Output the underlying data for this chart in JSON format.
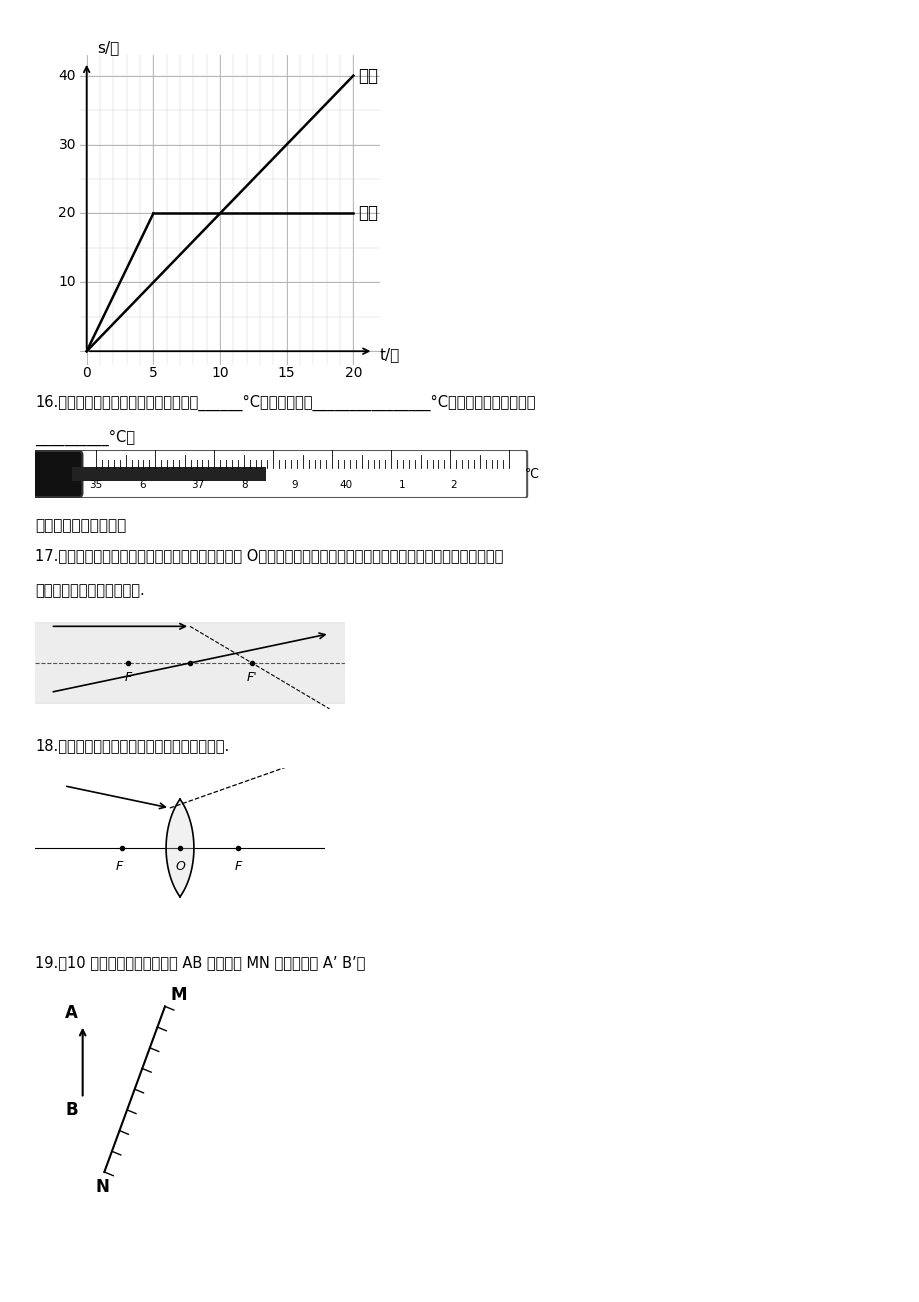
{
  "bg_color": "#ffffff",
  "page_width": 9.2,
  "page_height": 13.02,
  "graph_ylabel": "s/米",
  "graph_xlabel": "t/秒",
  "graph_xlim": [
    0,
    20
  ],
  "graph_ylim": [
    0,
    40
  ],
  "graph_xticks": [
    0,
    5,
    10,
    15,
    20
  ],
  "graph_yticks": [
    10,
    20,
    30,
    40
  ],
  "jia_label": "甲车",
  "yi_label": "乙车",
  "q16_line1": "16.　观察图中的体温计，它的分度局是______°C，测量范围是________________°C，图中体温计的示数是",
  "q16_line2": "__________°C。",
  "therm_numbers": [
    "35",
    "6",
    "37",
    "8",
    "9",
    "40",
    "1",
    "2"
  ],
  "sec4_title": "四、作图、实验探究题",
  "q17_line1": "17.　如图所示，已知一条入射光线过凸透镜的光心 O，一条经过凸透镜折射后的光线与主光轴平行，请分别画出它们",
  "q17_line2": "对应的出射光线和入射光线.",
  "q18_line1": "18.　如图所示，请画出通过透镜后的折射光线.",
  "q19_line1": "19.（10 分）请画出如图中物体 AB 在平面镜 MN 中所成的像 A’ B’。"
}
